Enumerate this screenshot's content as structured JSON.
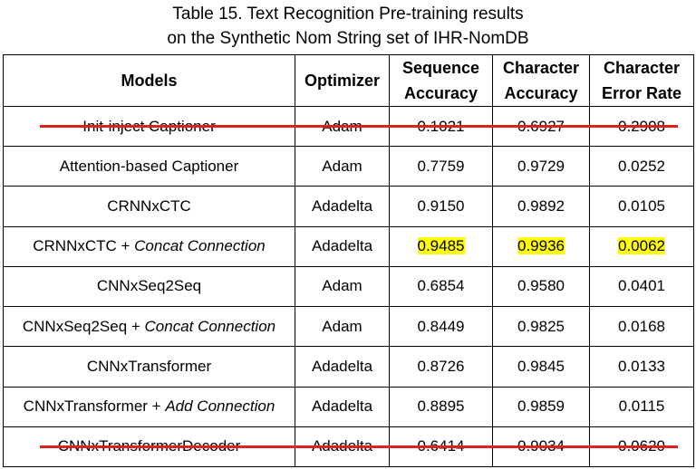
{
  "caption": {
    "line1": "Table 15. Text Recognition Pre-training results",
    "line2": "on the Synthetic Nom String set of IHR-NomDB"
  },
  "table": {
    "headers": {
      "models": "Models",
      "optimizer": "Optimizer",
      "seq_line1": "Sequence",
      "seq_line2": "Accuracy",
      "char_line1": "Character",
      "char_line2": "Accuracy",
      "cer_line1": "Character",
      "cer_line2": "Error Rate"
    },
    "rows": [
      {
        "model": "Init-inject Captioner",
        "optimizer": "Adam",
        "seq_acc": "0.1021",
        "char_acc": "0.6927",
        "cer": "0.2908",
        "struck": true
      },
      {
        "model": "Attention-based Captioner",
        "optimizer": "Adam",
        "seq_acc": "0.7759",
        "char_acc": "0.9729",
        "cer": "0.0252"
      },
      {
        "model": "CRNNxCTC",
        "optimizer": "Adadelta",
        "seq_acc": "0.9150",
        "char_acc": "0.9892",
        "cer": "0.0105"
      },
      {
        "model": "CRNNxCTC + ",
        "model_suffix": "Concat Connection",
        "optimizer": "Adadelta",
        "seq_acc": "0.9485",
        "char_acc": "0.9936",
        "cer": "0.0062",
        "highlight": true
      },
      {
        "model": "CNNxSeq2Seq",
        "optimizer": "Adam",
        "seq_acc": "0.6854",
        "char_acc": "0.9580",
        "cer": "0.0401"
      },
      {
        "model": "CNNxSeq2Seq + ",
        "model_suffix": "Concat Connection",
        "optimizer": "Adam",
        "seq_acc": "0.8449",
        "char_acc": "0.9825",
        "cer": "0.0168"
      },
      {
        "model": "CNNxTransformer",
        "optimizer": "Adadelta",
        "seq_acc": "0.8726",
        "char_acc": "0.9845",
        "cer": "0.0133"
      },
      {
        "model": "CNNxTransformer + ",
        "model_suffix": "Add Connection",
        "optimizer": "Adadelta",
        "seq_acc": "0.8895",
        "char_acc": "0.9859",
        "cer": "0.0115"
      },
      {
        "model": "CNNxTransformerDecoder",
        "optimizer": "Adadelta",
        "seq_acc": "0.6414",
        "char_acc": "0.9034",
        "cer": "0.0620",
        "struck": true
      }
    ]
  },
  "colors": {
    "highlight": "#ffff00",
    "strike": "#e0201c",
    "border": "#000000"
  }
}
